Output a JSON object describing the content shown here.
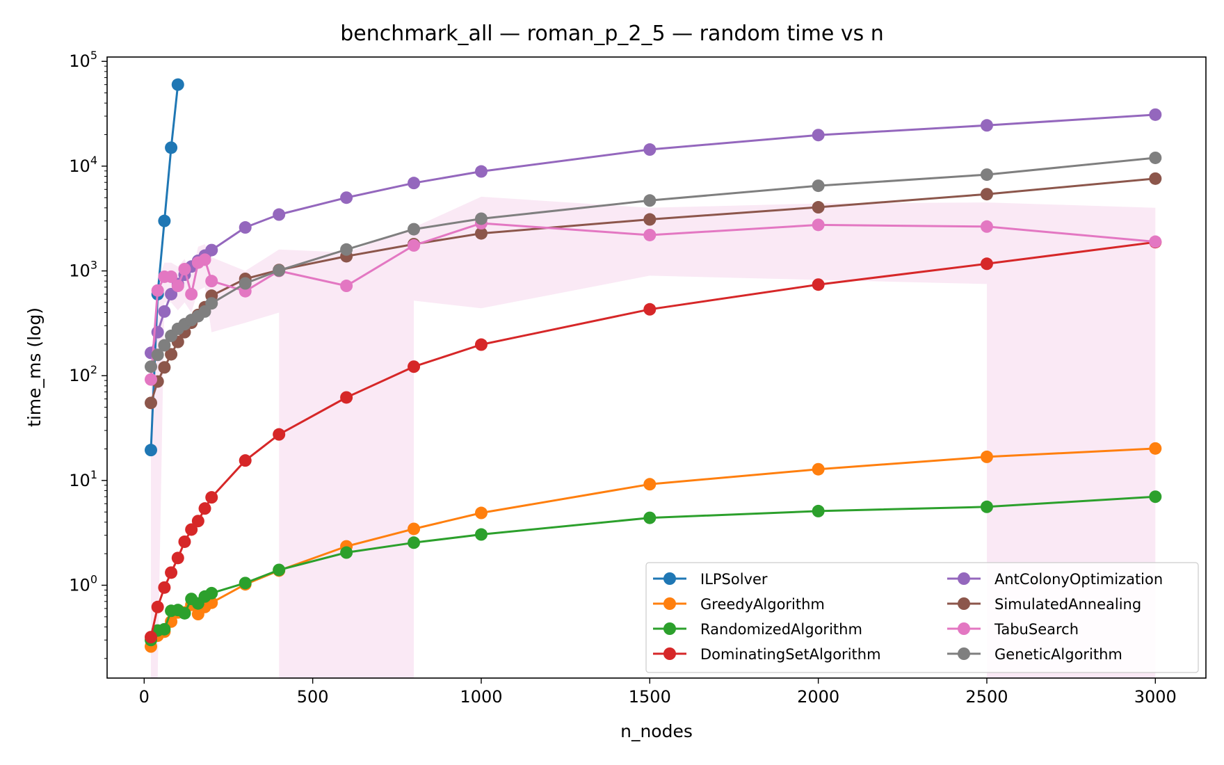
{
  "chart_data": {
    "type": "line",
    "title": "benchmark_all — roman_p_2_5 — random time vs n",
    "xlabel": "n_nodes",
    "ylabel": "time_ms (log)",
    "xlim": [
      -110,
      3150
    ],
    "ylim": [
      0.13,
      110000
    ],
    "yscale": "log",
    "xticks": [
      0,
      500,
      1000,
      1500,
      2000,
      2500,
      3000
    ],
    "xtick_labels": [
      "0",
      "500",
      "1000",
      "1500",
      "2000",
      "2500",
      "3000"
    ],
    "yticks": [
      1,
      10,
      100,
      1000,
      10000,
      100000
    ],
    "ytick_labels": [
      {
        "base": "10",
        "exp": "0"
      },
      {
        "base": "10",
        "exp": "1"
      },
      {
        "base": "10",
        "exp": "2"
      },
      {
        "base": "10",
        "exp": "3"
      },
      {
        "base": "10",
        "exp": "4"
      },
      {
        "base": "10",
        "exp": "5"
      }
    ],
    "grid": false,
    "legend_position": "lower-right",
    "legend_columns": 2,
    "series": [
      {
        "name": "ILPSolver",
        "color": "#1f77b4",
        "x": [
          20,
          40,
          60,
          80,
          100
        ],
        "y": [
          19.5,
          600,
          3000,
          15000,
          60000
        ]
      },
      {
        "name": "GreedyAlgorithm",
        "color": "#ff7f0e",
        "x": [
          20,
          40,
          60,
          80,
          100,
          120,
          140,
          160,
          180,
          200,
          300,
          400,
          600,
          800,
          1000,
          1500,
          2000,
          2500,
          3000
        ],
        "y": [
          0.26,
          0.33,
          0.36,
          0.45,
          0.55,
          0.55,
          0.65,
          0.53,
          0.62,
          0.68,
          1.02,
          1.38,
          2.35,
          3.45,
          4.9,
          9.2,
          12.8,
          16.8,
          20.2
        ]
      },
      {
        "name": "RandomizedAlgorithm",
        "color": "#2ca02c",
        "x": [
          20,
          40,
          60,
          80,
          100,
          120,
          140,
          160,
          180,
          200,
          300,
          400,
          600,
          800,
          1000,
          1500,
          2000,
          2500,
          3000
        ],
        "y": [
          0.3,
          0.37,
          0.38,
          0.57,
          0.58,
          0.54,
          0.74,
          0.67,
          0.78,
          0.84,
          1.05,
          1.4,
          2.05,
          2.55,
          3.05,
          4.4,
          5.1,
          5.6,
          7.0
        ]
      },
      {
        "name": "DominatingSetAlgorithm",
        "color": "#d62728",
        "x": [
          20,
          40,
          60,
          80,
          100,
          120,
          140,
          160,
          180,
          200,
          300,
          400,
          600,
          800,
          1000,
          1500,
          2000,
          2500,
          3000
        ],
        "y": [
          0.32,
          0.62,
          0.95,
          1.32,
          1.82,
          2.6,
          3.4,
          4.1,
          5.4,
          6.9,
          15.5,
          27.5,
          62,
          122,
          198,
          430,
          740,
          1170,
          1880
        ]
      },
      {
        "name": "AntColonyOptimization",
        "color": "#9467bd",
        "x": [
          20,
          40,
          60,
          80,
          100,
          120,
          140,
          160,
          180,
          200,
          300,
          400,
          600,
          800,
          1000,
          1500,
          2000,
          2500,
          3000
        ],
        "y": [
          165,
          260,
          410,
          600,
          750,
          920,
          1100,
          1250,
          1400,
          1580,
          2600,
          3450,
          5000,
          6900,
          8900,
          14400,
          19800,
          24500,
          31000
        ]
      },
      {
        "name": "SimulatedAnnealing",
        "color": "#8c564b",
        "x": [
          20,
          40,
          60,
          80,
          100,
          120,
          140,
          160,
          180,
          200,
          300,
          400,
          600,
          800,
          1000,
          1500,
          2000,
          2500,
          3000
        ],
        "y": [
          55,
          88,
          120,
          160,
          210,
          260,
          320,
          380,
          450,
          580,
          840,
          1020,
          1380,
          1800,
          2280,
          3100,
          4050,
          5400,
          7600
        ]
      },
      {
        "name": "TabuSearch",
        "color": "#e377c2",
        "x": [
          20,
          40,
          60,
          80,
          100,
          120,
          140,
          160,
          180,
          200,
          300,
          400,
          600,
          800,
          1000,
          1500,
          2000,
          2500,
          3000
        ],
        "y": [
          92,
          650,
          880,
          880,
          720,
          1040,
          600,
          1200,
          1280,
          800,
          640,
          1000,
          720,
          1750,
          2850,
          2200,
          2750,
          2650,
          1900
        ],
        "band": {
          "x": [
            20,
            40,
            60,
            80,
            100,
            120,
            140,
            160,
            180,
            200,
            300,
            400,
            400,
            600,
            800,
            800,
            1000,
            1500,
            2000,
            2500,
            2500,
            3000
          ],
          "lower": [
            0.13,
            0.13,
            500,
            500,
            420,
            500,
            400,
            650,
            700,
            260,
            320,
            400,
            0.13,
            0.13,
            0.13,
            520,
            440,
            900,
            820,
            750,
            0.13,
            0.13
          ],
          "upper": [
            110,
            800,
            1200,
            1200,
            1100,
            1300,
            900,
            1700,
            1800,
            1350,
            1000,
            1600,
            1600,
            1500,
            2600,
            2600,
            5100,
            4000,
            4400,
            4500,
            4500,
            4000
          ]
        }
      },
      {
        "name": "GeneticAlgorithm",
        "color": "#7f7f7f",
        "x": [
          20,
          40,
          60,
          80,
          100,
          120,
          140,
          160,
          180,
          200,
          300,
          400,
          600,
          800,
          1000,
          1500,
          2000,
          2500,
          3000
        ],
        "y": [
          122,
          158,
          195,
          240,
          280,
          310,
          340,
          370,
          410,
          490,
          760,
          1010,
          1600,
          2500,
          3150,
          4700,
          6500,
          8300,
          12000
        ]
      }
    ]
  }
}
